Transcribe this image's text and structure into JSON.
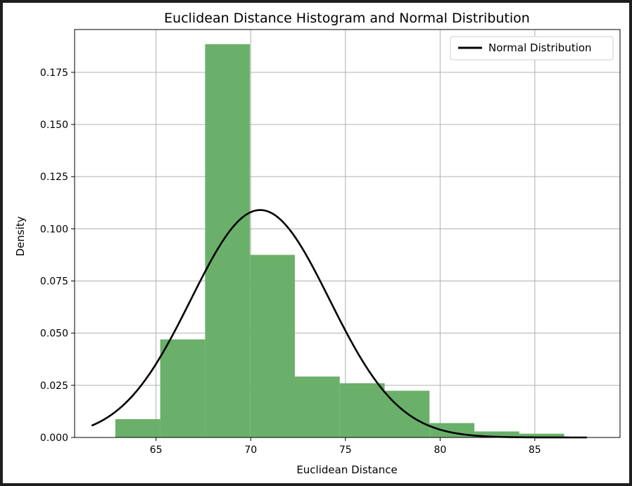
{
  "chart_data": {
    "type": "bar",
    "title": "Euclidean Distance Histogram and Normal Distribution",
    "xlabel": "Euclidean Distance",
    "ylabel": "Density",
    "xlim": [
      60.7,
      89.5
    ],
    "ylim": [
      0,
      0.1955
    ],
    "xticks": [
      65,
      70,
      75,
      80,
      85
    ],
    "xtick_labels": [
      "65",
      "70",
      "75",
      "80",
      "85"
    ],
    "yticks": [
      0,
      0.025,
      0.05,
      0.075,
      0.1,
      0.125,
      0.15,
      0.175
    ],
    "ytick_labels": [
      "0.000",
      "0.025",
      "0.050",
      "0.075",
      "0.100",
      "0.125",
      "0.150",
      "0.175"
    ],
    "grid": true,
    "legend_position": "top-right",
    "colors": {
      "bars": "#6ab06a",
      "curve": "#000000",
      "grid": "#b0b0b0"
    },
    "histogram": {
      "bin_edges": [
        62.85,
        65.22,
        67.59,
        69.96,
        72.33,
        74.7,
        77.07,
        79.44,
        81.81,
        84.18,
        86.55
      ],
      "density": [
        0.0088,
        0.047,
        0.1885,
        0.0875,
        0.0292,
        0.026,
        0.0224,
        0.0069,
        0.0029,
        0.0018
      ]
    },
    "series": [
      {
        "name": "Normal Distribution",
        "type": "line",
        "mean": 70.5,
        "std": 3.66,
        "x_range": [
          61.6,
          87.75
        ]
      }
    ]
  }
}
